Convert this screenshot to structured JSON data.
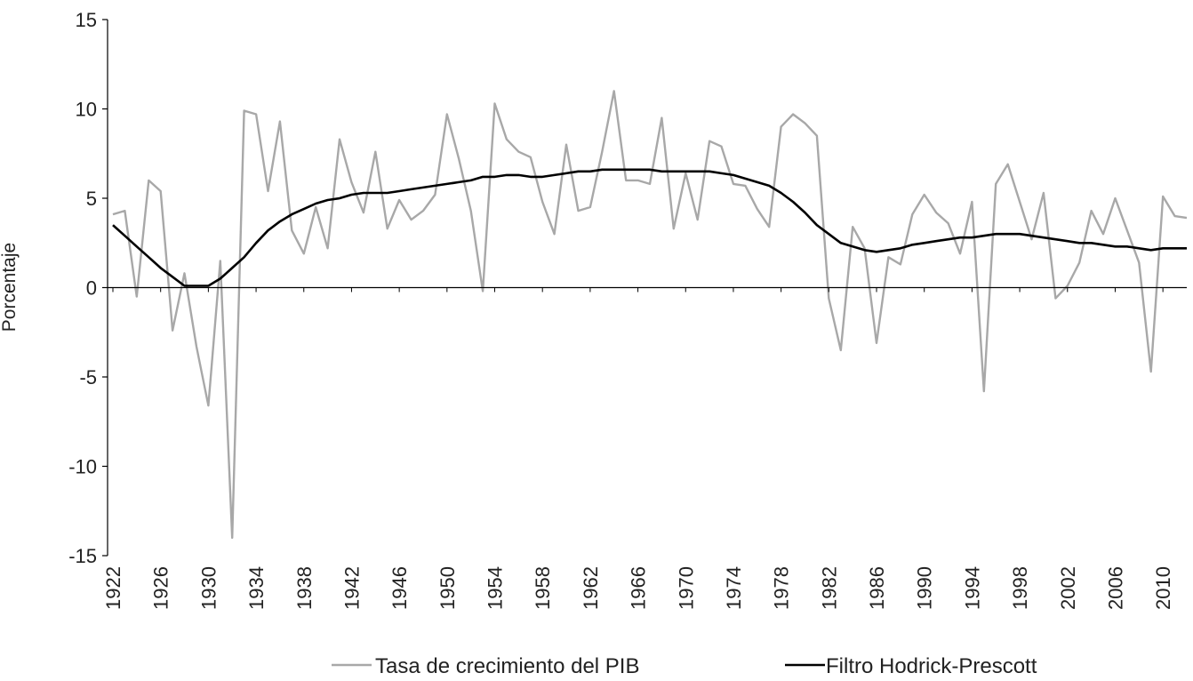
{
  "chart_data": {
    "type": "line",
    "title": "",
    "xlabel": "",
    "ylabel": "Porcentaje",
    "ylim": [
      -15,
      15
    ],
    "yticks": [
      15,
      10,
      5,
      0,
      -5,
      -10,
      -15
    ],
    "xticks": [
      1922,
      1926,
      1930,
      1934,
      1938,
      1942,
      1946,
      1950,
      1954,
      1958,
      1962,
      1966,
      1970,
      1974,
      1978,
      1982,
      1986,
      1990,
      1994,
      1998,
      2002,
      2006,
      2010
    ],
    "xlim": [
      1922,
      2012
    ],
    "legend": "bottom",
    "grid": false,
    "x": [
      1922,
      1923,
      1924,
      1925,
      1926,
      1927,
      1928,
      1929,
      1930,
      1931,
      1932,
      1933,
      1934,
      1935,
      1936,
      1937,
      1938,
      1939,
      1940,
      1941,
      1942,
      1943,
      1944,
      1945,
      1946,
      1947,
      1948,
      1949,
      1950,
      1951,
      1952,
      1953,
      1954,
      1955,
      1956,
      1957,
      1958,
      1959,
      1960,
      1961,
      1962,
      1963,
      1964,
      1965,
      1966,
      1967,
      1968,
      1969,
      1970,
      1971,
      1972,
      1973,
      1974,
      1975,
      1976,
      1977,
      1978,
      1979,
      1980,
      1981,
      1982,
      1983,
      1984,
      1985,
      1986,
      1987,
      1988,
      1989,
      1990,
      1991,
      1992,
      1993,
      1994,
      1995,
      1996,
      1997,
      1998,
      1999,
      2000,
      2001,
      2002,
      2003,
      2004,
      2005,
      2006,
      2007,
      2008,
      2009,
      2010,
      2011,
      2012
    ],
    "series": [
      {
        "name": "Tasa de crecimiento del PIB",
        "color": "#a8a8a8",
        "values": [
          4.1,
          4.3,
          -0.5,
          6.0,
          5.4,
          -2.4,
          0.8,
          -3.3,
          -6.6,
          1.5,
          -14.0,
          9.9,
          9.7,
          5.4,
          9.3,
          3.2,
          1.9,
          4.5,
          2.2,
          8.3,
          5.9,
          4.2,
          7.6,
          3.3,
          4.9,
          3.8,
          4.3,
          5.2,
          9.7,
          7.2,
          4.3,
          -0.2,
          10.3,
          8.3,
          7.6,
          7.3,
          4.8,
          3.0,
          8.0,
          4.3,
          4.5,
          7.6,
          11.0,
          6.0,
          6.0,
          5.8,
          9.5,
          3.3,
          6.4,
          3.8,
          8.2,
          7.9,
          5.8,
          5.7,
          4.4,
          3.4,
          9.0,
          9.7,
          9.2,
          8.5,
          -0.6,
          -3.5,
          3.4,
          2.2,
          -3.1,
          1.7,
          1.3,
          4.1,
          5.2,
          4.2,
          3.6,
          1.9,
          4.8,
          -5.8,
          5.8,
          6.9,
          4.8,
          2.7,
          5.3,
          -0.6,
          0.1,
          1.4,
          4.3,
          3.0,
          5.0,
          3.2,
          1.4,
          -4.7,
          5.1,
          4.0,
          3.9
        ]
      },
      {
        "name": "Filtro Hodrick-Prescott",
        "color": "#000000",
        "values": [
          3.5,
          2.9,
          2.3,
          1.7,
          1.1,
          0.6,
          0.1,
          0.1,
          0.1,
          0.5,
          1.1,
          1.7,
          2.5,
          3.2,
          3.7,
          4.1,
          4.4,
          4.7,
          4.9,
          5.0,
          5.2,
          5.3,
          5.3,
          5.3,
          5.4,
          5.5,
          5.6,
          5.7,
          5.8,
          5.9,
          6.0,
          6.2,
          6.2,
          6.3,
          6.3,
          6.2,
          6.2,
          6.3,
          6.4,
          6.5,
          6.5,
          6.6,
          6.6,
          6.6,
          6.6,
          6.6,
          6.5,
          6.5,
          6.5,
          6.5,
          6.5,
          6.4,
          6.3,
          6.1,
          5.9,
          5.7,
          5.3,
          4.8,
          4.2,
          3.5,
          3.0,
          2.5,
          2.3,
          2.1,
          2.0,
          2.1,
          2.2,
          2.4,
          2.5,
          2.6,
          2.7,
          2.8,
          2.8,
          2.9,
          3.0,
          3.0,
          3.0,
          2.9,
          2.8,
          2.7,
          2.6,
          2.5,
          2.5,
          2.4,
          2.3,
          2.3,
          2.2,
          2.1,
          2.2,
          2.2,
          2.2
        ]
      }
    ]
  }
}
